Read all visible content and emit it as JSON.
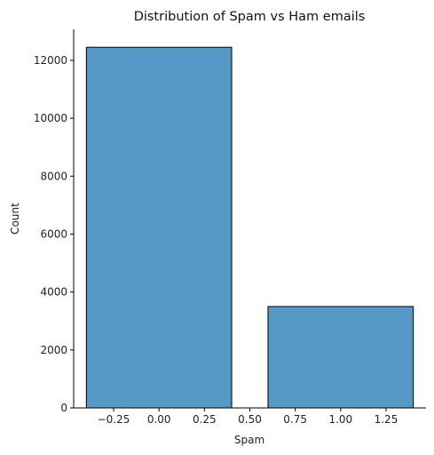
{
  "chart_data": {
    "type": "bar",
    "title": "Distribution of Spam vs Ham emails",
    "xlabel": "Spam",
    "ylabel": "Count",
    "bars": [
      {
        "x_start": -0.4,
        "x_end": 0.4,
        "value": 12450
      },
      {
        "x_start": 0.6,
        "x_end": 1.4,
        "value": 3500
      }
    ],
    "xlim": [
      -0.47,
      1.47
    ],
    "ylim": [
      0,
      13070
    ],
    "x_ticks": [
      -0.25,
      0.0,
      0.25,
      0.5,
      0.75,
      1.0,
      1.25
    ],
    "x_tick_labels": [
      "−0.25",
      "0.00",
      "0.25",
      "0.50",
      "0.75",
      "1.00",
      "1.25"
    ],
    "y_ticks": [
      0,
      2000,
      4000,
      6000,
      8000,
      10000,
      12000
    ],
    "y_tick_labels": [
      "0",
      "2000",
      "4000",
      "6000",
      "8000",
      "10000",
      "12000"
    ],
    "bar_color": "#5799c6",
    "edge_color": "#000000",
    "grid": false,
    "legend": "none"
  }
}
